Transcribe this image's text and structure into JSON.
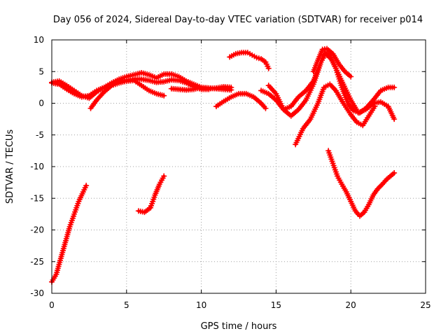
{
  "chart_data": {
    "type": "line",
    "title": "Day 056 of 2024, Sidereal Day-to-day VTEC variation (SDTVAR) for receiver p014",
    "xlabel": "GPS time / hours",
    "ylabel": "SDTVAR / TECUs",
    "xlim": [
      0,
      25
    ],
    "ylim": [
      -30,
      10
    ],
    "xticks": [
      0,
      5,
      10,
      15,
      20,
      25
    ],
    "yticks": [
      -30,
      -25,
      -20,
      -15,
      -10,
      -5,
      0,
      5,
      10
    ],
    "grid": true,
    "legend": "none",
    "series_color": "#ff0000",
    "series": [
      {
        "name": "seg-dawn-rise",
        "x": [
          0.0,
          0.3,
          0.6,
          0.9,
          1.2,
          1.5,
          1.8,
          2.1,
          2.3
        ],
        "y": [
          -28.2,
          -27.0,
          -24.5,
          -22.0,
          -19.5,
          -17.5,
          -15.5,
          -14.0,
          -13.0
        ]
      },
      {
        "name": "seg-midmorning",
        "x": [
          5.8,
          6.2,
          6.6,
          6.9,
          7.2,
          7.5
        ],
        "y": [
          -17.0,
          -17.2,
          -16.5,
          -14.5,
          -12.8,
          -11.5
        ]
      },
      {
        "name": "seg-main-a",
        "x": [
          0.0,
          0.5,
          1.0,
          1.5,
          2.0,
          2.5,
          3.0,
          3.5,
          4.0,
          4.5,
          5.0,
          5.5,
          6.0,
          6.5,
          7.0,
          7.5,
          8.0,
          8.5,
          9.0,
          9.5,
          10.0,
          10.5,
          11.0,
          11.5,
          12.0
        ],
        "y": [
          3.3,
          3.5,
          2.8,
          2.0,
          1.2,
          0.8,
          1.8,
          2.5,
          3.2,
          3.8,
          4.2,
          4.5,
          4.8,
          4.5,
          4.0,
          4.6,
          4.6,
          4.2,
          3.5,
          3.0,
          2.5,
          2.3,
          2.4,
          2.6,
          2.5
        ]
      },
      {
        "name": "seg-main-b",
        "x": [
          0.0,
          0.5,
          1.0,
          1.5,
          2.0,
          2.5,
          3.0,
          3.5,
          4.0,
          4.5,
          5.0,
          5.5,
          6.0,
          6.5,
          7.0,
          7.5,
          8.0,
          8.5,
          9.0,
          9.5,
          10.0,
          10.5
        ],
        "y": [
          3.2,
          3.0,
          2.2,
          1.5,
          1.0,
          1.2,
          2.0,
          2.5,
          3.0,
          3.5,
          3.6,
          3.8,
          3.8,
          3.6,
          3.3,
          3.4,
          3.7,
          3.6,
          3.2,
          2.6,
          2.2,
          2.2
        ]
      },
      {
        "name": "seg-main-c",
        "x": [
          2.6,
          3.0,
          3.5,
          4.0,
          4.5,
          5.0,
          5.5,
          6.0,
          6.5,
          7.0,
          7.5
        ],
        "y": [
          -0.8,
          0.5,
          1.8,
          2.8,
          3.2,
          3.5,
          3.6,
          2.8,
          2.0,
          1.5,
          1.2
        ]
      },
      {
        "name": "seg-late-morning",
        "x": [
          8.0,
          8.5,
          9.0,
          9.5,
          10.0,
          10.5,
          11.0,
          11.5,
          12.0
        ],
        "y": [
          2.3,
          2.2,
          2.1,
          2.2,
          2.5,
          2.4,
          2.3,
          2.2,
          2.1
        ]
      },
      {
        "name": "seg-high-noon",
        "x": [
          11.9,
          12.3,
          12.7,
          13.1,
          13.4,
          13.7,
          14.0,
          14.3,
          14.5
        ],
        "y": [
          7.3,
          7.8,
          8.0,
          8.0,
          7.6,
          7.2,
          7.0,
          6.5,
          5.5
        ]
      },
      {
        "name": "seg-afternoon-dip",
        "x": [
          11.0,
          11.5,
          12.0,
          12.5,
          13.0,
          13.5,
          14.0,
          14.3
        ],
        "y": [
          -0.5,
          0.3,
          1.0,
          1.5,
          1.5,
          1.0,
          0.0,
          -0.8
        ]
      },
      {
        "name": "seg-evening-a",
        "x": [
          14.5,
          15.0,
          15.5,
          16.0,
          16.5,
          17.0,
          17.5,
          18.0,
          18.3,
          18.6,
          19.0,
          19.4,
          19.8,
          20.2,
          20.6,
          21.0,
          21.5,
          22.0,
          22.5,
          22.9
        ],
        "y": [
          2.8,
          1.5,
          -1.0,
          -2.0,
          -1.0,
          0.5,
          3.0,
          6.5,
          8.0,
          7.5,
          5.5,
          2.5,
          0.0,
          -1.2,
          -1.5,
          -0.8,
          0.5,
          2.0,
          2.5,
          2.5
        ]
      },
      {
        "name": "seg-evening-b",
        "x": [
          14.0,
          14.5,
          15.0,
          15.5,
          16.0,
          16.5,
          17.0,
          17.5,
          18.0,
          18.3,
          18.7,
          19.0,
          19.5,
          20.0,
          20.5,
          21.0,
          21.5,
          22.0,
          22.5,
          22.9
        ],
        "y": [
          2.0,
          1.5,
          0.5,
          -1.0,
          -0.5,
          1.0,
          2.0,
          3.5,
          6.5,
          7.8,
          7.0,
          5.5,
          3.0,
          0.5,
          -1.5,
          -1.0,
          0.0,
          0.2,
          -0.5,
          -2.5
        ]
      },
      {
        "name": "seg-evening-c",
        "x": [
          16.3,
          16.8,
          17.3,
          17.8,
          18.2,
          18.6,
          19.0,
          19.5,
          20.0,
          20.4,
          20.8,
          21.2,
          21.6
        ],
        "y": [
          -6.5,
          -4.0,
          -2.5,
          0.0,
          2.5,
          3.0,
          2.0,
          0.0,
          -1.8,
          -3.0,
          -3.5,
          -2.0,
          -0.5
        ]
      },
      {
        "name": "seg-evening-d",
        "x": [
          17.5,
          17.8,
          18.1,
          18.4,
          18.8,
          19.2,
          19.6,
          20.0
        ],
        "y": [
          5.0,
          6.8,
          8.5,
          8.6,
          7.8,
          6.2,
          5.0,
          4.2
        ]
      },
      {
        "name": "seg-night-trough",
        "x": [
          18.5,
          18.8,
          19.1,
          19.4,
          19.7,
          20.0,
          20.3,
          20.6,
          20.9,
          21.2,
          21.5,
          21.8,
          22.1,
          22.4,
          22.7,
          22.9
        ],
        "y": [
          -7.5,
          -9.5,
          -11.5,
          -12.8,
          -14.0,
          -15.5,
          -17.0,
          -17.8,
          -17.2,
          -16.0,
          -14.5,
          -13.5,
          -12.8,
          -12.0,
          -11.4,
          -11.0
        ]
      }
    ]
  }
}
